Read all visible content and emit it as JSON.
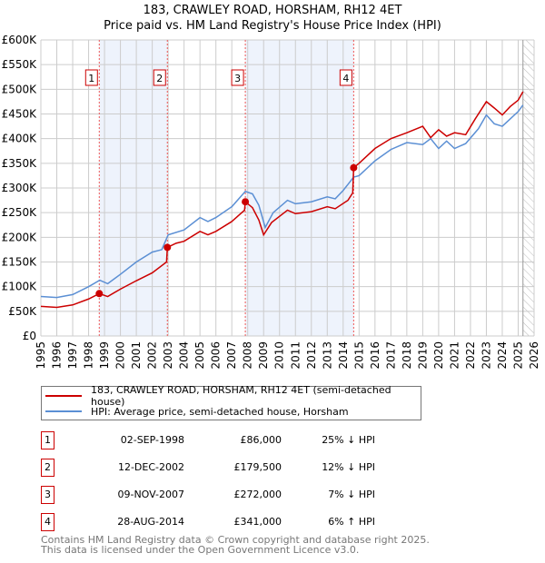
{
  "chart_data": {
    "type": "line",
    "title": "183, CRAWLEY ROAD, HORSHAM, RH12 4ET",
    "subtitle": "Price paid vs. HM Land Registry's House Price Index (HPI)",
    "xlim": [
      1995,
      2026
    ],
    "ylim": [
      0,
      600000
    ],
    "x_ticks": [
      "1995",
      "1996",
      "1997",
      "1998",
      "1999",
      "2000",
      "2001",
      "2002",
      "2003",
      "2004",
      "2005",
      "2006",
      "2007",
      "2008",
      "2009",
      "2010",
      "2011",
      "2012",
      "2013",
      "2014",
      "2015",
      "2016",
      "2017",
      "2018",
      "2019",
      "2020",
      "2021",
      "2022",
      "2023",
      "2024",
      "2025",
      "2026"
    ],
    "y_ticks": [
      {
        "v": 0,
        "label": "£0"
      },
      {
        "v": 50000,
        "label": "£50K"
      },
      {
        "v": 100000,
        "label": "£100K"
      },
      {
        "v": 150000,
        "label": "£150K"
      },
      {
        "v": 200000,
        "label": "£200K"
      },
      {
        "v": 250000,
        "label": "£250K"
      },
      {
        "v": 300000,
        "label": "£300K"
      },
      {
        "v": 350000,
        "label": "£350K"
      },
      {
        "v": 400000,
        "label": "£400K"
      },
      {
        "v": 450000,
        "label": "£450K"
      },
      {
        "v": 500000,
        "label": "£500K"
      },
      {
        "v": 550000,
        "label": "£550K"
      },
      {
        "v": 600000,
        "label": "£600K"
      }
    ],
    "grid": true,
    "shaded_ranges": [
      [
        1998.67,
        2002.95
      ],
      [
        2007.85,
        2014.66
      ]
    ],
    "forecast_hatch_from": 2025.3,
    "series": [
      {
        "name": "183, CRAWLEY ROAD, HORSHAM, RH12 4ET (semi-detached house)",
        "color": "#cc0000",
        "x": [
          1995,
          1996,
          1997,
          1998,
          1998.67,
          1999.2,
          2000,
          2001,
          2002,
          2002.9,
          2002.95,
          2003.5,
          2004,
          2005,
          2005.5,
          2006,
          2007,
          2007.8,
          2007.85,
          2008.3,
          2008.7,
          2009.0,
          2009.5,
          2010.5,
          2011,
          2012,
          2013,
          2013.5,
          2014.3,
          2014.6,
          2014.66,
          2015,
          2016,
          2017,
          2018,
          2019,
          2019.5,
          2020,
          2020.5,
          2021,
          2021.7,
          2022.3,
          2023,
          2023.5,
          2024,
          2024.5,
          2025,
          2025.3
        ],
        "y": [
          60000,
          58000,
          63000,
          75000,
          86000,
          80000,
          95000,
          112000,
          128000,
          150000,
          179500,
          188000,
          192000,
          212000,
          205000,
          212000,
          232000,
          255000,
          272000,
          260000,
          235000,
          205000,
          230000,
          255000,
          248000,
          252000,
          262000,
          258000,
          275000,
          290000,
          341000,
          350000,
          380000,
          400000,
          412000,
          425000,
          402000,
          418000,
          405000,
          412000,
          408000,
          440000,
          475000,
          462000,
          448000,
          465000,
          478000,
          495000
        ]
      },
      {
        "name": "HPI: Average price, semi-detached house, Horsham",
        "color": "#5b8fd4",
        "x": [
          1995,
          1996,
          1997,
          1998,
          1998.7,
          1999.2,
          2000,
          2001,
          2002,
          2002.6,
          2003,
          2004,
          2005,
          2005.5,
          2006,
          2007,
          2007.85,
          2008.3,
          2008.7,
          2009.1,
          2009.6,
          2010.5,
          2011,
          2012,
          2013,
          2013.5,
          2014,
          2014.66,
          2015,
          2016,
          2017,
          2018,
          2019,
          2019.5,
          2020,
          2020.5,
          2021,
          2021.7,
          2022.5,
          2023,
          2023.5,
          2024,
          2024.5,
          2025,
          2025.3
        ],
        "y": [
          80000,
          78000,
          84000,
          100000,
          113000,
          106000,
          125000,
          150000,
          170000,
          175000,
          205000,
          215000,
          240000,
          232000,
          240000,
          262000,
          293000,
          288000,
          265000,
          220000,
          250000,
          275000,
          268000,
          272000,
          282000,
          278000,
          295000,
          322000,
          325000,
          355000,
          378000,
          392000,
          388000,
          400000,
          380000,
          395000,
          380000,
          390000,
          420000,
          448000,
          430000,
          425000,
          440000,
          455000,
          468000
        ]
      }
    ],
    "sales": [
      {
        "id": "1",
        "x": 1998.67,
        "y": 86000,
        "date": "02-SEP-1998",
        "price": "£86,000",
        "hpi": "25% ↓ HPI"
      },
      {
        "id": "2",
        "x": 2002.95,
        "y": 179500,
        "date": "12-DEC-2002",
        "price": "£179,500",
        "hpi": "12% ↓ HPI"
      },
      {
        "id": "3",
        "x": 2007.85,
        "y": 272000,
        "date": "09-NOV-2007",
        "price": "£272,000",
        "hpi": "7% ↓ HPI"
      },
      {
        "id": "4",
        "x": 2014.66,
        "y": 341000,
        "date": "28-AUG-2014",
        "price": "£341,000",
        "hpi": "6% ↑ HPI"
      }
    ]
  },
  "footer": {
    "line1": "Contains HM Land Registry data © Crown copyright and database right 2025.",
    "line2": "This data is licensed under the Open Government Licence v3.0."
  }
}
